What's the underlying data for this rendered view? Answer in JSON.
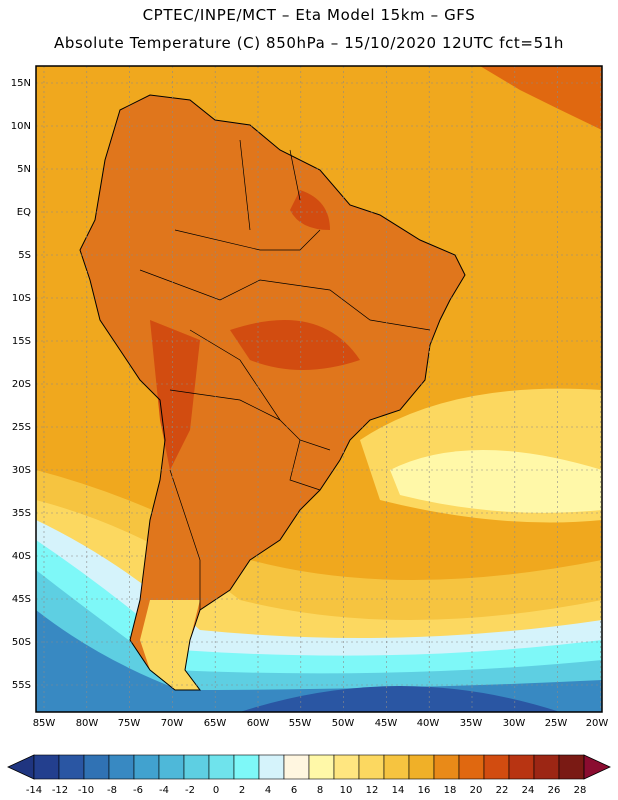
{
  "header": {
    "line1": "CPTEC/INPE/MCT –  Eta Model 15km – GFS",
    "line2": "Absolute Temperature (C) 850hPa – 15/10/2020 12UTC fct=51h"
  },
  "map": {
    "lat_labels": [
      "15N",
      "10N",
      "5N",
      "EQ",
      "5S",
      "10S",
      "15S",
      "20S",
      "25S",
      "30S",
      "35S",
      "40S",
      "45S",
      "50S",
      "55S"
    ],
    "lon_labels": [
      "85W",
      "80W",
      "75W",
      "70W",
      "65W",
      "60W",
      "55W",
      "50W",
      "45W",
      "40W",
      "35W",
      "30W",
      "25W",
      "20W"
    ],
    "ocean_color": "#f0a81e",
    "land_color": "#e0761c",
    "grid_color": "#8a8a8a"
  },
  "colorbar": {
    "ticks": [
      "-14",
      "-12",
      "-10",
      "-8",
      "-6",
      "-4",
      "-2",
      "0",
      "2",
      "4",
      "6",
      "8",
      "10",
      "12",
      "14",
      "16",
      "18",
      "20",
      "22",
      "24",
      "26",
      "28"
    ],
    "colors": [
      "#233f8e",
      "#2a56a3",
      "#3072b4",
      "#3889c2",
      "#41a2cf",
      "#4eb8d9",
      "#5ecfe2",
      "#6fe3ec",
      "#7ef8f8",
      "#d5f3fb",
      "#fff6e0",
      "#fff8a8",
      "#ffe680",
      "#fcd860",
      "#f6c440",
      "#f0b028",
      "#e98a18",
      "#e06810",
      "#d24c10",
      "#b83412",
      "#9c2614",
      "#7a1a14"
    ],
    "low_color": "#1f3580",
    "high_color": "#8a0c30"
  }
}
